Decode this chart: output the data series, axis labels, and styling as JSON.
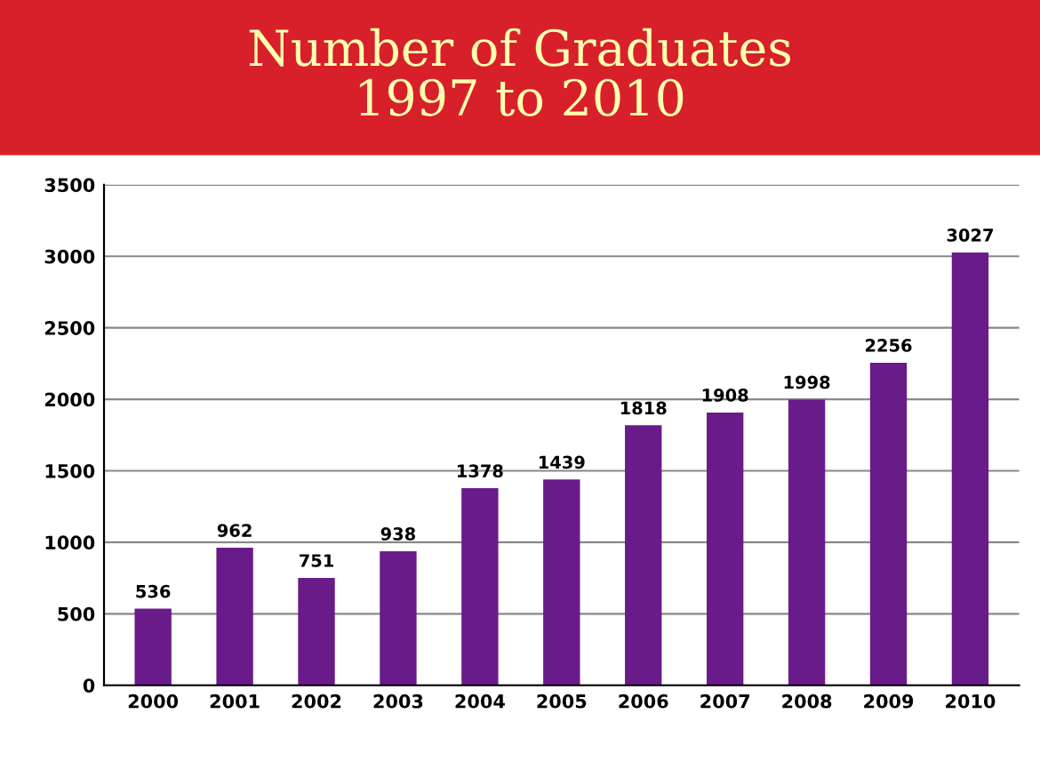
{
  "chart_data": {
    "type": "bar",
    "title": "Number of Graduates\n1997 to 2010",
    "categories": [
      "2000",
      "2001",
      "2002",
      "2003",
      "2004",
      "2005",
      "2006",
      "2007",
      "2008",
      "2009",
      "2010"
    ],
    "values": [
      536,
      962,
      751,
      938,
      1378,
      1439,
      1818,
      1908,
      1998,
      2256,
      3027
    ],
    "color": "#6a1b8a",
    "ylim": [
      0,
      3500
    ],
    "yticks": [
      0,
      500,
      1000,
      1500,
      2000,
      2500,
      3000,
      3500
    ],
    "grid": "y",
    "data_labels": true
  }
}
